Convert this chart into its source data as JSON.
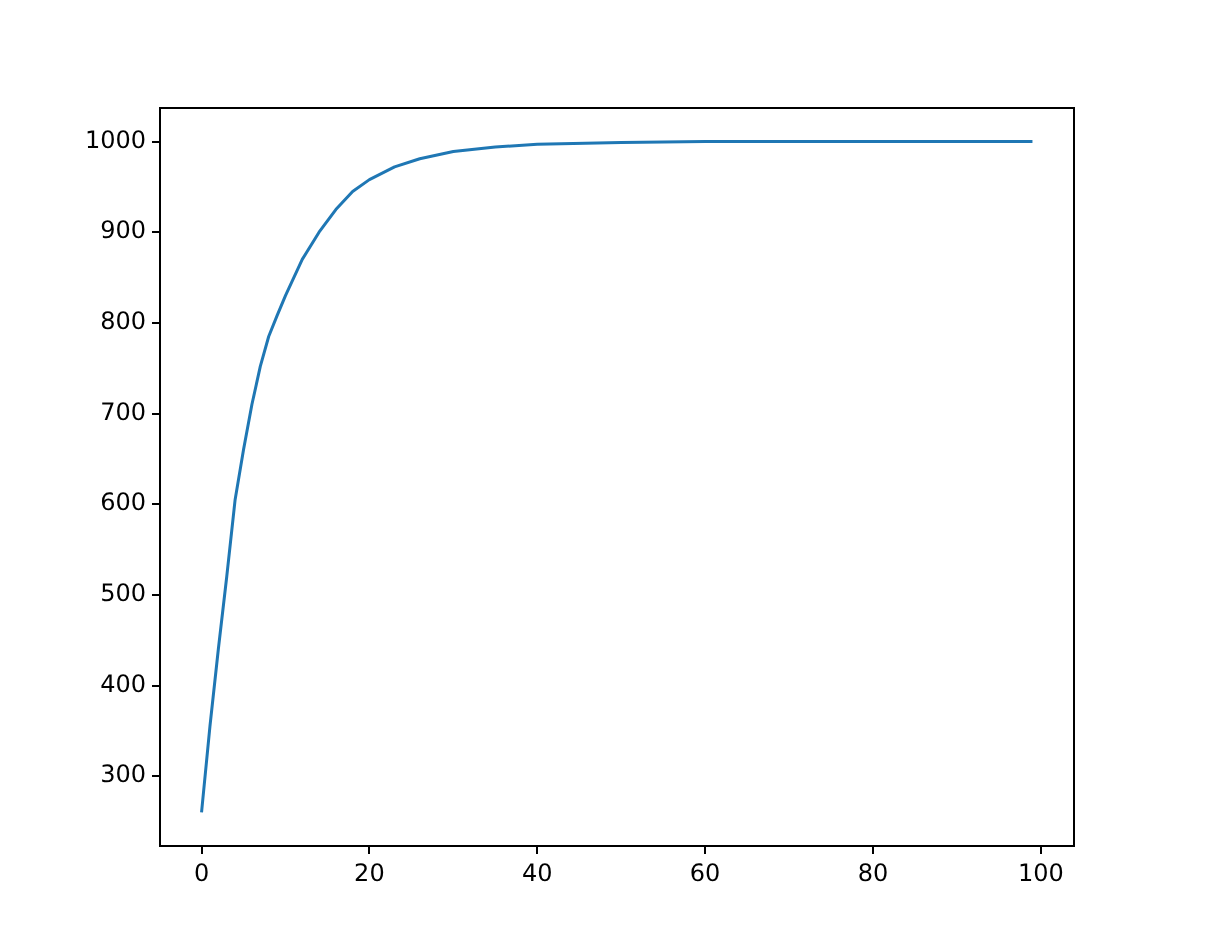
{
  "chart_data": {
    "type": "line",
    "x": [
      0,
      1,
      2,
      3,
      4,
      5,
      6,
      7,
      8,
      9,
      10,
      12,
      14,
      16,
      18,
      20,
      23,
      26,
      30,
      35,
      40,
      50,
      60,
      80,
      99
    ],
    "series": [
      {
        "color": "#1f77b4",
        "values": [
          260,
          355,
          440,
          520,
          605,
          660,
          710,
          752,
          785,
          808,
          830,
          870,
          900,
          925,
          945,
          958,
          972,
          981,
          989,
          994,
          997,
          999,
          1000,
          1000,
          1000
        ]
      }
    ],
    "xlim": [
      -4.95,
      103.95
    ],
    "xticks": [
      0,
      20,
      40,
      60,
      80,
      100
    ],
    "ylim": [
      223,
      1037
    ],
    "yticks": [
      300,
      400,
      500,
      600,
      700,
      800,
      900,
      1000
    ],
    "grid": false,
    "legend": false,
    "marker": "none",
    "line_style": "solid"
  }
}
